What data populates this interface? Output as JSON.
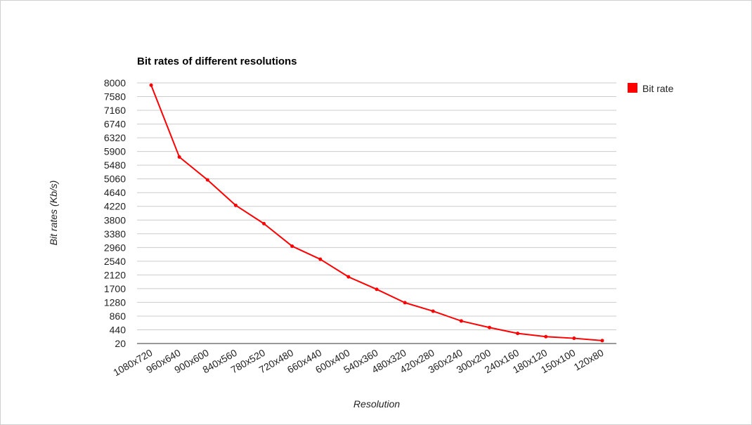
{
  "chart_data": {
    "type": "line",
    "title": "Bit rates of different resolutions",
    "xlabel": "Resolution",
    "ylabel": "Bit rates (Kb/s)",
    "categories": [
      "1080x720",
      "960x640",
      "900x600",
      "840x560",
      "780x520",
      "720x480",
      "660x440",
      "600x400",
      "540x360",
      "480x320",
      "420x280",
      "360x240",
      "300x200",
      "240x160",
      "180x120",
      "150x100",
      "120x80"
    ],
    "yticks": [
      20,
      440,
      860,
      1280,
      1700,
      2120,
      2540,
      2960,
      3380,
      3800,
      4220,
      4640,
      5060,
      5480,
      5900,
      6320,
      6740,
      7160,
      7580,
      8000
    ],
    "ylim": [
      20,
      8000
    ],
    "series": [
      {
        "name": "Bit rate",
        "color": "#ff0000",
        "values": [
          7930,
          5730,
          5030,
          4250,
          3690,
          3000,
          2600,
          2060,
          1680,
          1270,
          1010,
          710,
          510,
          330,
          230,
          180,
          110
        ]
      }
    ],
    "grid": true,
    "legend": "right"
  }
}
